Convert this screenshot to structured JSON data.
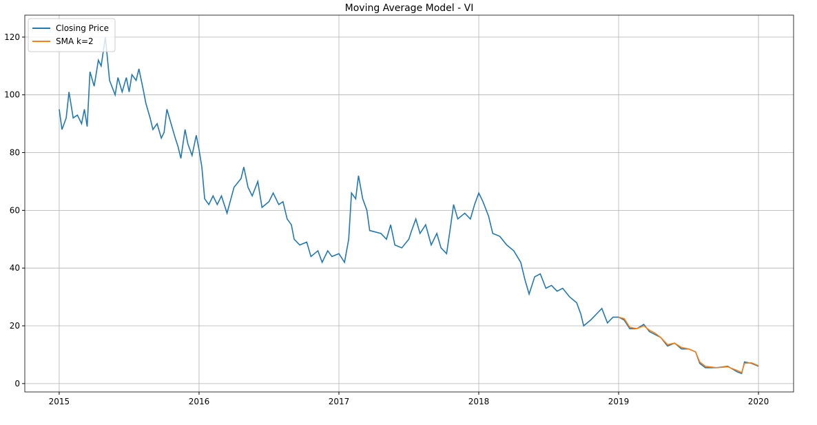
{
  "chart_data": {
    "type": "line",
    "title": "Moving Average Model - VI",
    "x": [
      2015.0,
      2015.02,
      2015.05,
      2015.07,
      2015.1,
      2015.13,
      2015.16,
      2015.18,
      2015.2,
      2015.22,
      2015.25,
      2015.28,
      2015.3,
      2015.33,
      2015.36,
      2015.4,
      2015.42,
      2015.45,
      2015.48,
      2015.5,
      2015.52,
      2015.55,
      2015.57,
      2015.6,
      2015.62,
      2015.65,
      2015.67,
      2015.7,
      2015.73,
      2015.75,
      2015.77,
      2015.8,
      2015.83,
      2015.85,
      2015.87,
      2015.9,
      2015.92,
      2015.95,
      2015.98,
      2016.0,
      2016.02,
      2016.04,
      2016.07,
      2016.1,
      2016.13,
      2016.16,
      2016.2,
      2016.25,
      2016.3,
      2016.32,
      2016.35,
      2016.38,
      2016.42,
      2016.45,
      2016.5,
      2016.53,
      2016.57,
      2016.6,
      2016.63,
      2016.66,
      2016.68,
      2016.72,
      2016.77,
      2016.8,
      2016.85,
      2016.88,
      2016.92,
      2016.95,
      2017.0,
      2017.04,
      2017.07,
      2017.09,
      2017.12,
      2017.14,
      2017.17,
      2017.2,
      2017.22,
      2017.3,
      2017.34,
      2017.37,
      2017.4,
      2017.45,
      2017.5,
      2017.52,
      2017.55,
      2017.58,
      2017.62,
      2017.66,
      2017.7,
      2017.73,
      2017.77,
      2017.8,
      2017.82,
      2017.85,
      2017.9,
      2017.94,
      2017.97,
      2018.0,
      2018.03,
      2018.07,
      2018.1,
      2018.15,
      2018.2,
      2018.25,
      2018.3,
      2018.33,
      2018.36,
      2018.4,
      2018.44,
      2018.48,
      2018.52,
      2018.56,
      2018.6,
      2018.65,
      2018.7,
      2018.73,
      2018.75,
      2018.8,
      2018.84,
      2018.88,
      2018.92,
      2018.96,
      2019.0,
      2019.04,
      2019.08,
      2019.13,
      2019.18,
      2019.22,
      2019.26,
      2019.3,
      2019.35,
      2019.4,
      2019.45,
      2019.5,
      2019.55,
      2019.58,
      2019.62,
      2019.7,
      2019.78,
      2019.85,
      2019.88,
      2019.9,
      2019.95,
      2020.0
    ],
    "series": [
      {
        "name": "Closing Price",
        "color": "#1f77b4",
        "values": [
          95,
          88,
          92,
          101,
          92,
          93,
          90,
          95,
          89,
          108,
          103,
          112,
          110,
          120,
          105,
          100,
          106,
          101,
          106,
          101,
          107,
          105,
          109,
          102,
          97,
          92,
          88,
          90,
          85,
          87,
          95,
          90,
          85,
          82,
          78,
          88,
          83,
          79,
          86,
          81,
          75,
          64,
          62,
          65,
          62,
          65,
          59,
          68,
          71,
          75,
          68,
          65,
          70,
          61,
          63,
          66,
          62,
          63,
          57,
          55,
          50,
          48,
          49,
          44,
          46,
          42,
          46,
          44,
          45,
          42,
          50,
          66,
          64,
          72,
          64,
          60,
          53,
          52,
          50,
          55,
          48,
          47,
          50,
          53,
          57,
          52,
          55,
          48,
          52,
          47,
          45,
          55,
          62,
          57,
          59,
          57,
          62,
          66,
          63,
          58,
          52,
          51,
          48,
          46,
          42,
          36,
          31,
          37,
          38,
          33,
          34,
          32,
          33,
          30,
          28,
          24,
          20,
          22,
          24,
          26,
          21,
          23,
          23,
          22,
          19,
          19,
          20.5,
          18,
          17,
          16,
          13,
          14,
          12,
          12,
          11,
          7,
          5.5,
          5.5,
          6,
          4,
          3.5,
          7.5,
          7,
          6
        ]
      },
      {
        "name": "SMA k=2",
        "color": "#ff7f0e",
        "values": [
          null,
          null,
          null,
          null,
          null,
          null,
          null,
          null,
          null,
          null,
          null,
          null,
          null,
          null,
          null,
          null,
          null,
          null,
          null,
          null,
          null,
          null,
          null,
          null,
          null,
          null,
          null,
          null,
          null,
          null,
          null,
          null,
          null,
          null,
          null,
          null,
          null,
          null,
          null,
          null,
          null,
          null,
          null,
          null,
          null,
          null,
          null,
          null,
          null,
          null,
          null,
          null,
          null,
          null,
          null,
          null,
          null,
          null,
          null,
          null,
          null,
          null,
          null,
          null,
          null,
          null,
          null,
          null,
          null,
          null,
          null,
          null,
          null,
          null,
          null,
          null,
          null,
          null,
          null,
          null,
          null,
          null,
          null,
          null,
          null,
          null,
          null,
          null,
          null,
          null,
          null,
          null,
          null,
          null,
          null,
          null,
          null,
          null,
          null,
          null,
          null,
          null,
          null,
          null,
          null,
          null,
          null,
          null,
          null,
          null,
          null,
          null,
          null,
          null,
          null,
          null,
          null,
          null,
          null,
          null,
          null,
          null,
          23,
          22.5,
          19.5,
          19,
          20,
          18.5,
          17.5,
          16,
          13.5,
          14,
          12.5,
          12,
          11,
          7.5,
          6,
          5.5,
          5.8,
          4.5,
          3.8,
          7,
          7.2,
          6.2
        ]
      }
    ],
    "xlim": [
      2014.754,
      2020.251
    ],
    "xticks": [
      2015,
      2016,
      2017,
      2018,
      2019,
      2020
    ],
    "ylim": [
      -2.9,
      127.6
    ],
    "yticks": [
      0,
      20,
      40,
      60,
      80,
      100,
      120
    ],
    "grid": true,
    "legend": "upper left"
  }
}
